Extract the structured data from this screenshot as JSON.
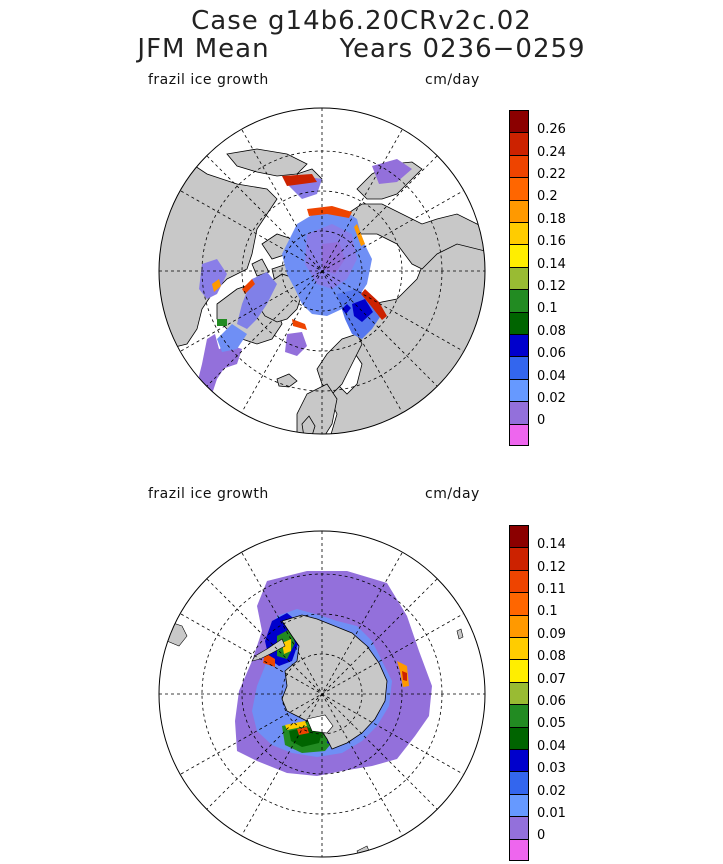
{
  "header": {
    "case_line": "Case g14b6.20CRv2c.02",
    "mean_label": "JFM Mean",
    "years_label": "Years 0236−0259"
  },
  "panels": [
    {
      "variable_label": "frazil ice growth",
      "units_label": "cm/day",
      "hemisphere": "north",
      "colorbar": {
        "labels": [
          "0.26",
          "0.24",
          "0.22",
          "0.2",
          "0.18",
          "0.16",
          "0.14",
          "0.12",
          "0.1",
          "0.08",
          "0.06",
          "0.04",
          "0.02",
          "0"
        ],
        "colors": [
          "#8b0000",
          "#cc2200",
          "#ee4400",
          "#ff6600",
          "#ff9900",
          "#ffcc00",
          "#ffee00",
          "#99bb33",
          "#228b22",
          "#006400",
          "#0000cc",
          "#3366ee",
          "#6699ff",
          "#9370db",
          "#ee66ee"
        ]
      }
    },
    {
      "variable_label": "frazil ice growth",
      "units_label": "cm/day",
      "hemisphere": "south",
      "colorbar": {
        "labels": [
          "0.14",
          "0.12",
          "0.11",
          "0.1",
          "0.09",
          "0.08",
          "0.07",
          "0.06",
          "0.05",
          "0.04",
          "0.03",
          "0.02",
          "0.01",
          "0"
        ],
        "colors": [
          "#8b0000",
          "#cc2200",
          "#ee4400",
          "#ff6600",
          "#ff9900",
          "#ffcc00",
          "#ffee00",
          "#99bb33",
          "#228b22",
          "#006400",
          "#0000cc",
          "#3366ee",
          "#6699ff",
          "#9370db",
          "#ee66ee"
        ]
      }
    }
  ]
}
